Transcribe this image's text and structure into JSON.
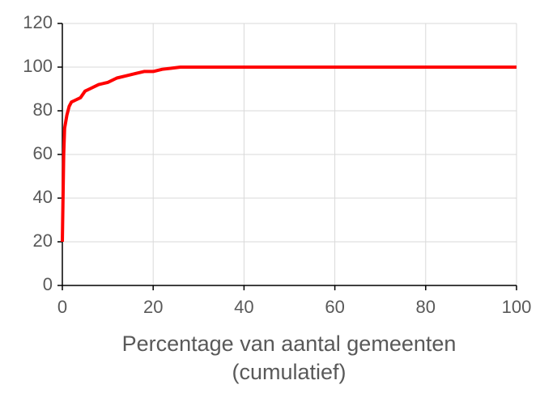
{
  "chart_data": {
    "type": "line",
    "x_label": [
      "Percentage van aantal gemeenten",
      "(cumulatief)"
    ],
    "x": [
      0,
      0.3,
      0.5,
      1,
      1.5,
      2,
      3,
      4,
      5,
      6,
      8,
      10,
      12,
      14,
      16,
      18,
      20,
      22,
      24,
      26,
      100
    ],
    "values": [
      20,
      60,
      72,
      78,
      82,
      84,
      85,
      86,
      89,
      90,
      92,
      93,
      95,
      96,
      97,
      98,
      98,
      99,
      99.5,
      100,
      100
    ],
    "color": "#ff0000",
    "xlim": [
      0,
      100
    ],
    "xticks": [
      0,
      20,
      40,
      60,
      80,
      100
    ],
    "ylim": [
      0,
      120
    ],
    "yticks": [
      0,
      20,
      40,
      60,
      80,
      100,
      120
    ],
    "grid": true
  }
}
